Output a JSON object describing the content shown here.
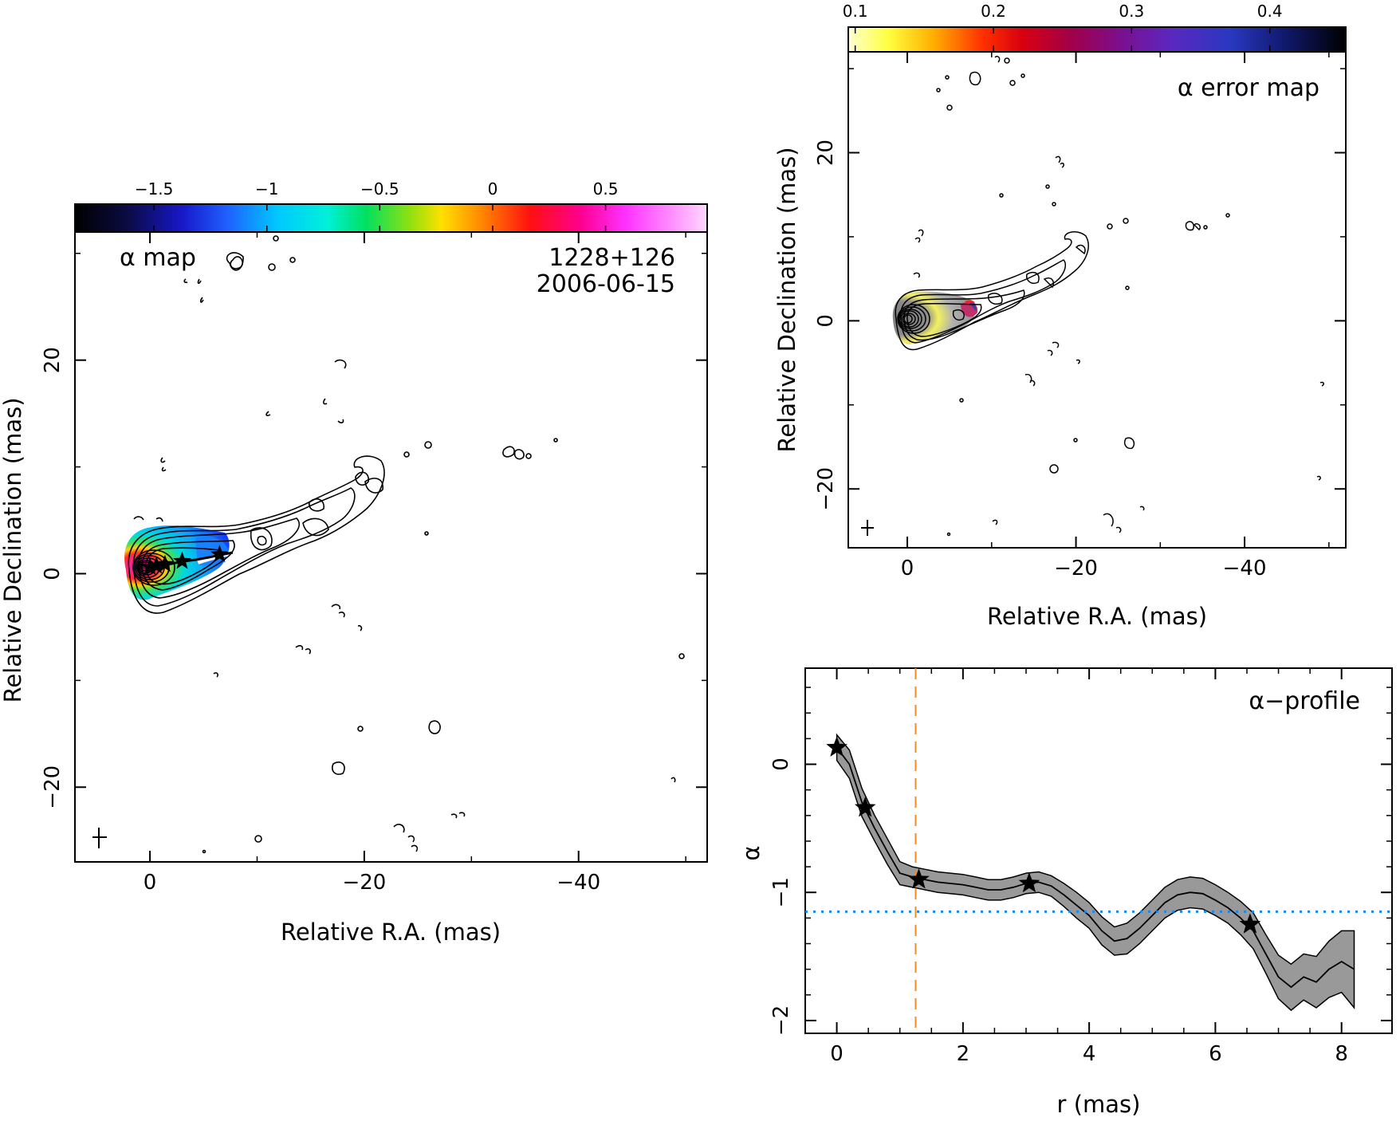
{
  "alpha_map": {
    "label": "α map",
    "source": "1228+126",
    "date": "2006-06-15",
    "colorbar": {
      "ticks": [
        "−1.5",
        "−1",
        "−0.5",
        "0",
        "0.5"
      ],
      "tick_values": [
        -1.5,
        -1,
        -0.5,
        0,
        0.5
      ],
      "range": [
        -1.85,
        0.95
      ]
    },
    "xlabel": "Relative R.A. (mas)",
    "ylabel": "Relative Declination (mas)",
    "xticks": [
      "0",
      "−20",
      "−40"
    ],
    "yticks": [
      "20",
      "0",
      "−20"
    ]
  },
  "error_map": {
    "label": "α error map",
    "colorbar": {
      "ticks": [
        "0.1",
        "0.2",
        "0.3",
        "0.4"
      ],
      "tick_values": [
        0.1,
        0.2,
        0.3,
        0.4
      ],
      "range": [
        0.095,
        0.455
      ]
    },
    "xlabel": "Relative R.A. (mas)",
    "ylabel": "Relative Declination (mas)",
    "xticks": [
      "0",
      "−20",
      "−40"
    ],
    "yticks": [
      "20",
      "0",
      "−20"
    ]
  },
  "chart_data": [
    {
      "type": "image",
      "panel": "alpha map",
      "xlabel": "Relative R.A. (mas)",
      "ylabel": "Relative Declination (mas)",
      "xlim": [
        7,
        -52
      ],
      "ylim": [
        -27,
        32
      ],
      "xticks": [
        0,
        -20,
        -40
      ],
      "yticks": [
        20,
        0,
        -20
      ],
      "colorbar": {
        "label": "",
        "range": [
          -1.85,
          0.95
        ],
        "ticks": [
          -1.5,
          -1,
          -0.5,
          0,
          0.5
        ]
      },
      "annotations": [
        "α map",
        "1228+126",
        "2006-06-15"
      ],
      "ridge_markers_x": [
        0,
        -0.6,
        -1.4,
        -3.0,
        -6.5
      ]
    },
    {
      "type": "image",
      "panel": "alpha error map",
      "xlabel": "Relative R.A. (mas)",
      "ylabel": "Relative Declination (mas)",
      "xlim": [
        7,
        -52
      ],
      "ylim": [
        -27,
        32
      ],
      "xticks": [
        0,
        -20,
        -40
      ],
      "yticks": [
        20,
        0,
        -20
      ],
      "colorbar": {
        "label": "",
        "range": [
          0.095,
          0.455
        ],
        "ticks": [
          0.1,
          0.2,
          0.3,
          0.4
        ]
      },
      "annotations": [
        "α error map"
      ]
    },
    {
      "type": "line",
      "title": "α−profile",
      "xlabel": "r (mas)",
      "ylabel": "α",
      "xlim": [
        -0.5,
        8.8
      ],
      "ylim": [
        -2.1,
        0.75
      ],
      "xticks": [
        0,
        2,
        4,
        6,
        8
      ],
      "yticks": [
        0,
        -1,
        -2
      ],
      "x": [
        0,
        0.2,
        0.4,
        0.6,
        0.8,
        1.0,
        1.2,
        1.4,
        1.6,
        1.8,
        2.0,
        2.2,
        2.4,
        2.6,
        2.8,
        3.0,
        3.2,
        3.4,
        3.6,
        3.8,
        4.0,
        4.2,
        4.4,
        4.6,
        4.8,
        5.0,
        5.2,
        5.4,
        5.6,
        5.8,
        6.0,
        6.2,
        6.4,
        6.6,
        6.8,
        7.0,
        7.2,
        7.4,
        7.6,
        7.8,
        8.0,
        8.2
      ],
      "y": [
        0.13,
        0.0,
        -0.3,
        -0.5,
        -0.68,
        -0.85,
        -0.88,
        -0.9,
        -0.92,
        -0.93,
        -0.94,
        -0.96,
        -0.98,
        -0.98,
        -0.96,
        -0.93,
        -0.92,
        -0.95,
        -1.02,
        -1.1,
        -1.18,
        -1.3,
        -1.38,
        -1.36,
        -1.28,
        -1.18,
        -1.08,
        -1.02,
        -1.0,
        -1.01,
        -1.06,
        -1.12,
        -1.2,
        -1.3,
        -1.48,
        -1.66,
        -1.74,
        -1.66,
        -1.7,
        -1.6,
        -1.54,
        -1.6
      ],
      "error": [
        0.1,
        0.11,
        0.11,
        0.1,
        0.1,
        0.09,
        0.08,
        0.08,
        0.08,
        0.08,
        0.08,
        0.08,
        0.08,
        0.08,
        0.08,
        0.08,
        0.08,
        0.08,
        0.09,
        0.1,
        0.1,
        0.11,
        0.11,
        0.12,
        0.12,
        0.12,
        0.12,
        0.12,
        0.12,
        0.12,
        0.12,
        0.12,
        0.13,
        0.14,
        0.15,
        0.17,
        0.18,
        0.18,
        0.2,
        0.22,
        0.24,
        0.3
      ],
      "markers": {
        "x": [
          0.0,
          0.45,
          1.3,
          3.05,
          6.55
        ],
        "y": [
          0.13,
          -0.34,
          -0.9,
          -0.93,
          -1.25
        ]
      },
      "vline": {
        "x": 1.25,
        "style": "dashed",
        "color": "#f08a24"
      },
      "hline": {
        "y": -1.15,
        "style": "dotted",
        "color": "#1e88e5"
      }
    }
  ]
}
